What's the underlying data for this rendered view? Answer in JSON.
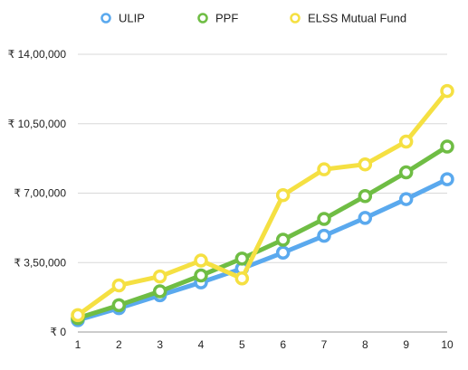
{
  "chart_data": {
    "type": "line",
    "title": "",
    "xlabel": "",
    "ylabel": "",
    "x": [
      1,
      2,
      3,
      4,
      5,
      6,
      7,
      8,
      9,
      10
    ],
    "xticks": [
      "1",
      "2",
      "3",
      "4",
      "5",
      "6",
      "7",
      "8",
      "9",
      "10"
    ],
    "ylim": [
      0,
      1400000
    ],
    "yticks": [
      {
        "value": 0,
        "label": "₹ 0"
      },
      {
        "value": 350000,
        "label": "₹ 3,50,000"
      },
      {
        "value": 700000,
        "label": "₹ 7,00,000"
      },
      {
        "value": 1050000,
        "label": "₹ 10,50,000"
      },
      {
        "value": 1400000,
        "label": "₹ 14,00,000"
      }
    ],
    "grid": "horizontal",
    "legend_position": "top",
    "series": [
      {
        "name": "ULIP",
        "color": "#5aa9ee",
        "values": [
          60000,
          120000,
          185000,
          250000,
          320000,
          400000,
          485000,
          575000,
          670000,
          770000
        ]
      },
      {
        "name": "PPF",
        "color": "#6fbd44",
        "values": [
          70000,
          135000,
          205000,
          285000,
          370000,
          465000,
          570000,
          685000,
          805000,
          935000
        ]
      },
      {
        "name": "ELSS Mutual Fund",
        "color": "#f5e042",
        "values": [
          85000,
          235000,
          280000,
          360000,
          270000,
          690000,
          820000,
          845000,
          960000,
          1215000
        ]
      }
    ]
  }
}
